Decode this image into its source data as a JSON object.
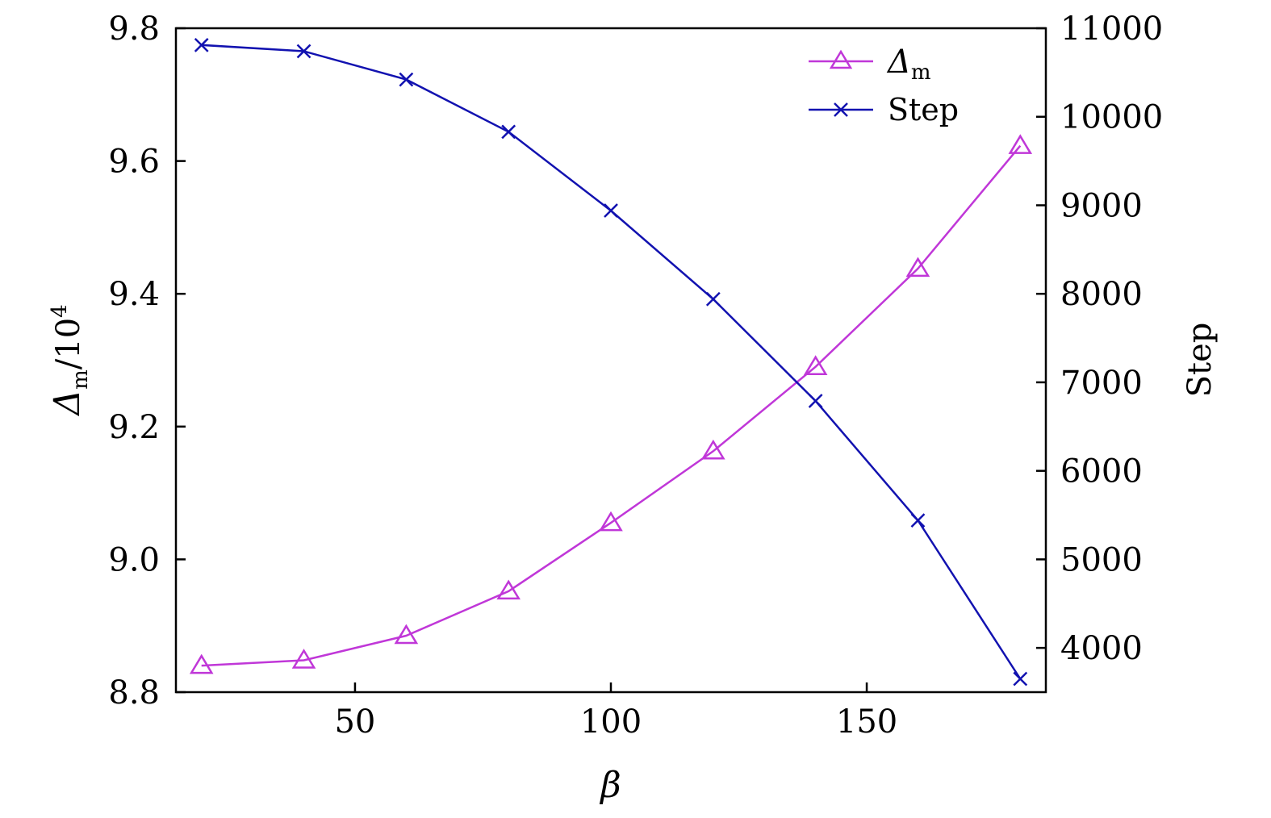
{
  "chart_data": {
    "type": "line",
    "x": [
      20,
      40,
      60,
      80,
      100,
      120,
      140,
      160,
      180
    ],
    "xlabel": "β",
    "xlim": [
      15,
      185
    ],
    "xticks": [
      50,
      100,
      150
    ],
    "ylabel_left": {
      "symbol": "Δ",
      "subscript": "m",
      "suffix": "/10",
      "superscript": "4"
    },
    "ylim_left": [
      8.8,
      9.8
    ],
    "yticks_left": [
      "8.8",
      "9.0",
      "9.2",
      "9.4",
      "9.6",
      "9.8"
    ],
    "ylabel_right": "Step",
    "ylim_right": [
      3500,
      11000
    ],
    "yticks_right": [
      "4000",
      "5000",
      "6000",
      "7000",
      "8000",
      "9000",
      "10000",
      "11000"
    ],
    "legend_position": "top-right",
    "grid": false,
    "series": [
      {
        "name": "Δm",
        "legend_symbol": "Δ",
        "legend_subscript": "m",
        "axis": "left",
        "marker": "triangle",
        "color": "#c037d8",
        "values": [
          8.84,
          8.848,
          8.885,
          8.952,
          9.055,
          9.163,
          9.29,
          9.438,
          9.623
        ]
      },
      {
        "name": "Step",
        "axis": "right",
        "marker": "x",
        "color": "#1212b0",
        "values": [
          10810,
          10740,
          10420,
          9830,
          8940,
          7940,
          6790,
          5440,
          3650
        ]
      }
    ]
  }
}
